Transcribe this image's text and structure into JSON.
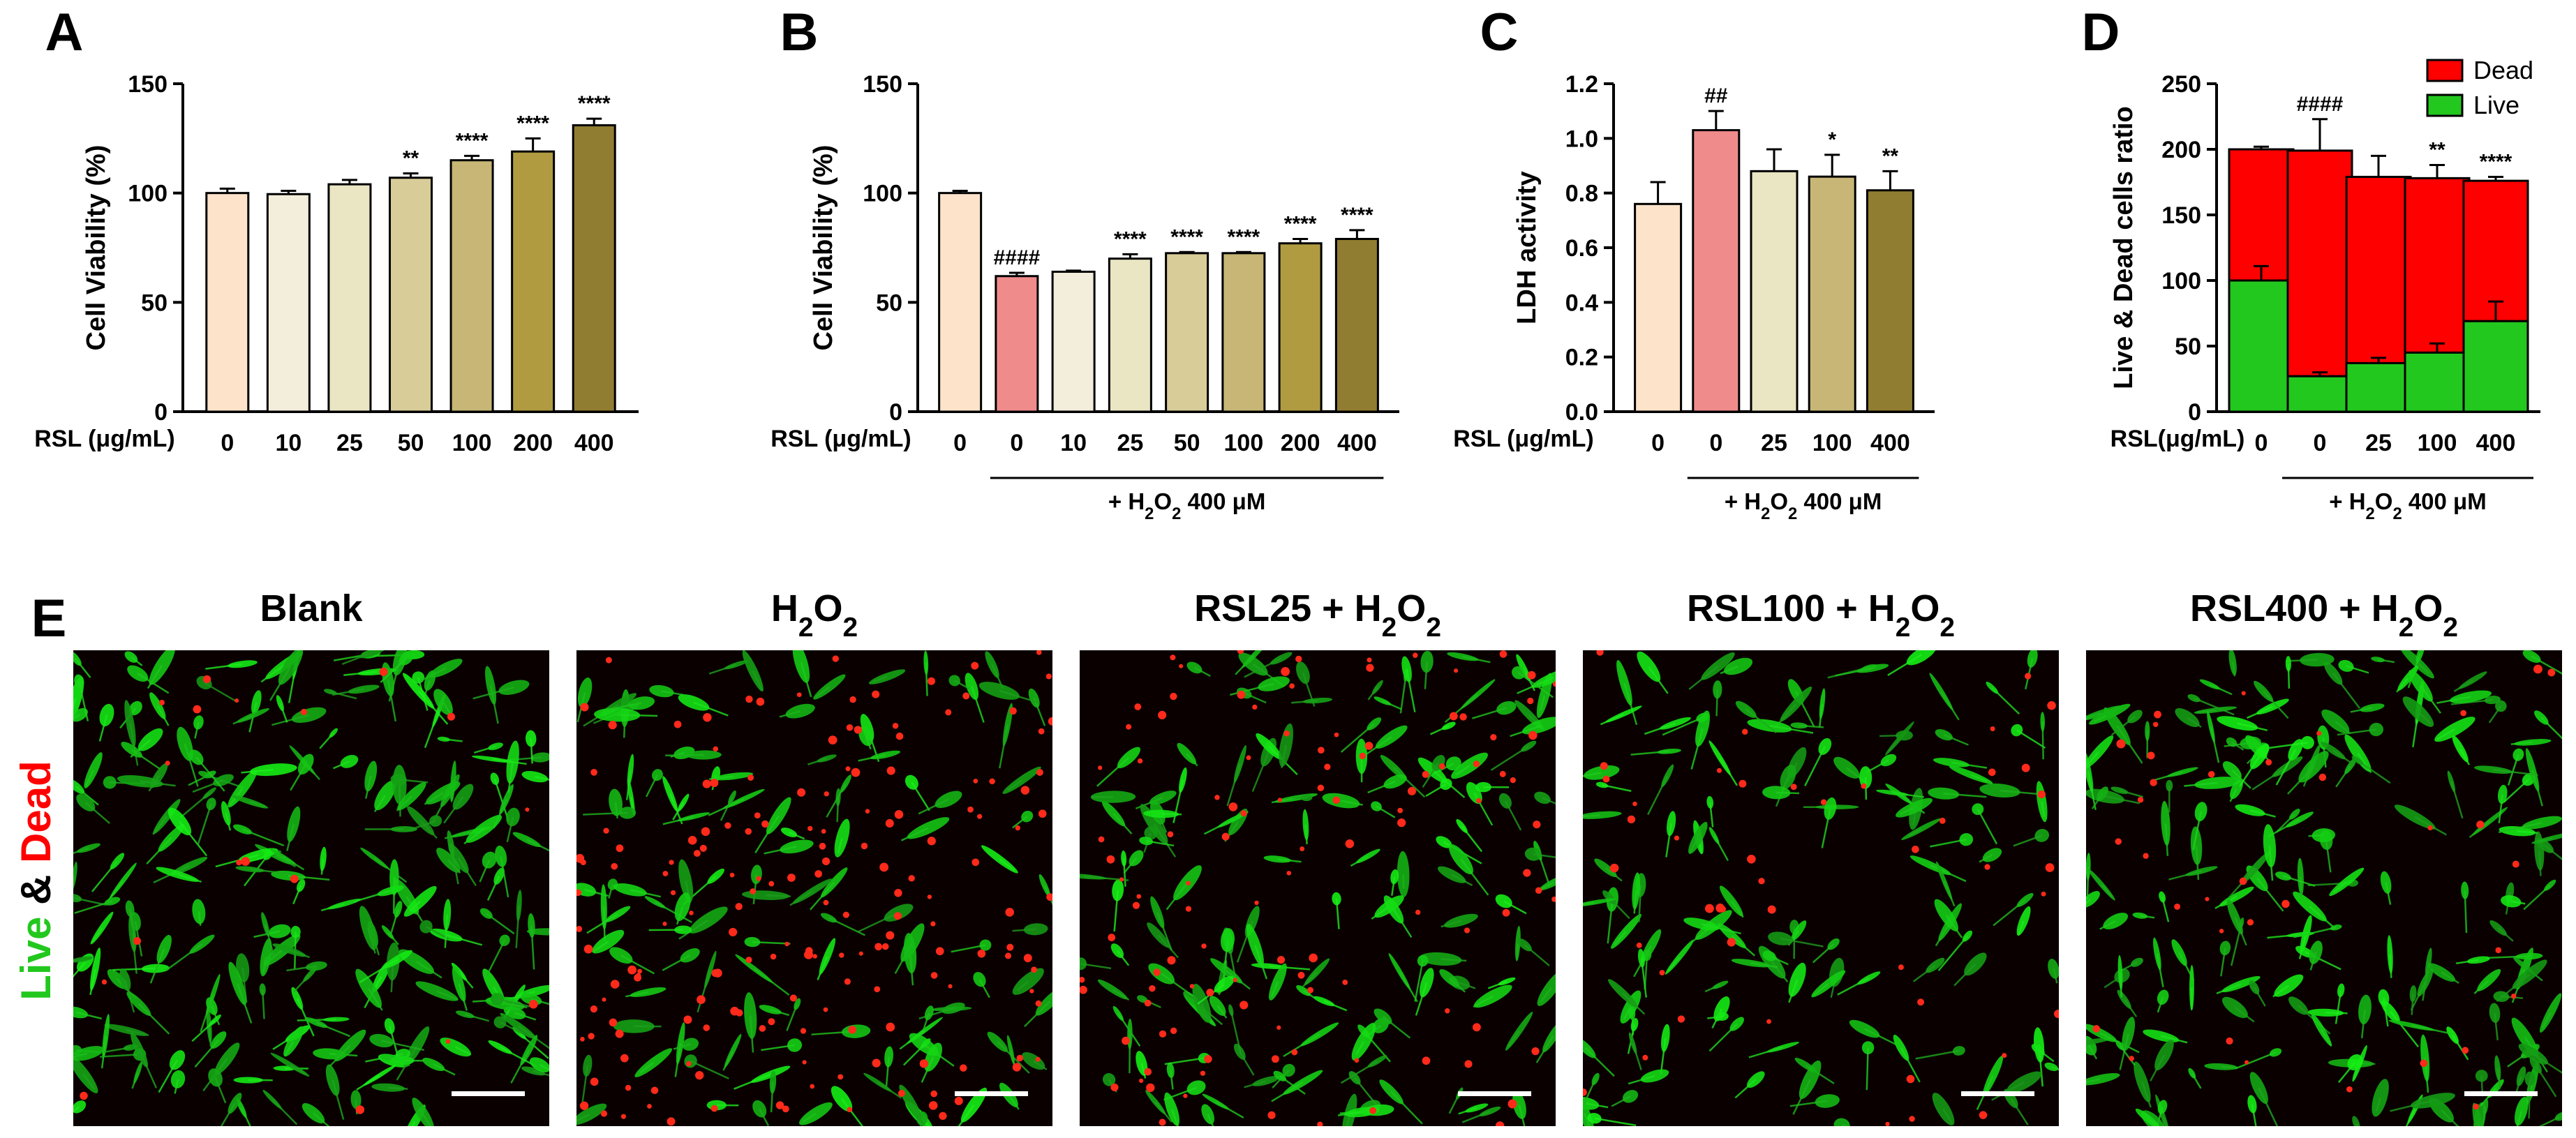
{
  "panels": [
    {
      "letter": "A",
      "ylabel": "Cell Viability (%)",
      "xlabel": "RSL (μg/mL)",
      "ylim": [
        0,
        150
      ],
      "yticks": [
        "0",
        "50",
        "100",
        "150"
      ],
      "bracket_label": "",
      "stacked": false,
      "chart_data": {
        "type": "bar",
        "categories": [
          "0",
          "10",
          "25",
          "50",
          "100",
          "200",
          "400"
        ],
        "values": [
          100,
          99.5,
          104,
          107,
          115,
          119,
          131
        ],
        "errors": [
          2,
          1.5,
          2,
          2,
          2,
          6,
          3
        ],
        "annotations": [
          "",
          "",
          "",
          "**",
          "****",
          "****",
          "****"
        ],
        "colors": [
          "#fde3ca",
          "#f3eedb",
          "#eae5c2",
          "#d8cc99",
          "#c7b676",
          "#b09b41",
          "#917d31"
        ]
      }
    },
    {
      "letter": "B",
      "ylabel": "Cell Viability (%)",
      "xlabel": "RSL (μg/mL)",
      "ylim": [
        0,
        150
      ],
      "yticks": [
        "0",
        "50",
        "100",
        "150"
      ],
      "bracket_label": "+ H2O2 400 μM",
      "stacked": false,
      "chart_data": {
        "type": "bar",
        "categories": [
          "0",
          "0",
          "10",
          "25",
          "50",
          "100",
          "200",
          "400"
        ],
        "values": [
          100,
          62,
          64,
          70,
          72.5,
          72.5,
          77,
          79
        ],
        "errors": [
          1,
          1.5,
          0.5,
          2,
          0.5,
          0.5,
          2,
          4
        ],
        "annotations": [
          "",
          "####",
          "",
          "****",
          "****",
          "****",
          "****",
          "****"
        ],
        "colors": [
          "#fde3ca",
          "#f08b8b",
          "#f3eedb",
          "#eae5c2",
          "#d8cc99",
          "#c7b676",
          "#b09b41",
          "#917d31"
        ]
      }
    },
    {
      "letter": "C",
      "ylabel": "LDH activity",
      "xlabel": "RSL (μg/mL)",
      "ylim": [
        0,
        1.2
      ],
      "yticks": [
        "0.0",
        "0.2",
        "0.4",
        "0.6",
        "0.8",
        "1.0",
        "1.2"
      ],
      "bracket_label": "+ H2O2 400 μM",
      "stacked": false,
      "chart_data": {
        "type": "bar",
        "categories": [
          "0",
          "0",
          "25",
          "100",
          "400"
        ],
        "values": [
          0.76,
          1.03,
          0.88,
          0.86,
          0.81
        ],
        "errors": [
          0.08,
          0.07,
          0.08,
          0.08,
          0.07
        ],
        "annotations": [
          "",
          "##",
          "",
          "*",
          "**"
        ],
        "colors": [
          "#fde3ca",
          "#f08b8b",
          "#eae5c2",
          "#c7b676",
          "#917d31"
        ]
      }
    },
    {
      "letter": "D",
      "ylabel": "Live & Dead cells ratio",
      "xlabel": "RSL(μg/mL)",
      "ylim": [
        0,
        250
      ],
      "yticks": [
        "0",
        "50",
        "100",
        "150",
        "200",
        "250"
      ],
      "bracket_label": "+ H2O2 400 μM",
      "stacked": true,
      "chart_data": {
        "type": "bar",
        "stacked": true,
        "categories": [
          "0",
          "0",
          "25",
          "100",
          "400"
        ],
        "series": [
          {
            "name": "Live",
            "color": "#22c81e",
            "values": [
              100,
              27,
              37,
              45,
              69
            ],
            "errors": [
              11,
              3,
              4,
              7,
              15
            ]
          },
          {
            "name": "Dead",
            "color": "#ff0000",
            "values": [
              100,
              172,
              142,
              133,
              107
            ],
            "errors": [
              2,
              24,
              16,
              10,
              3
            ]
          }
        ],
        "annotations": [
          "",
          "####",
          "",
          "**",
          "****"
        ],
        "legend": [
          "Dead",
          "Live"
        ],
        "legend_position": "top-right"
      }
    }
  ],
  "panel_e": {
    "letter": "E",
    "side_label": {
      "live": "Live",
      "and": "&",
      "dead": "Dead"
    },
    "images": [
      "Blank",
      "H2O2",
      "RSL25 + H2O2",
      "RSL100 + H2O2",
      "RSL400 + H2O2"
    ]
  },
  "colors": {
    "live": "#22c81e",
    "dead": "#ff0000",
    "axis": "#000000"
  }
}
